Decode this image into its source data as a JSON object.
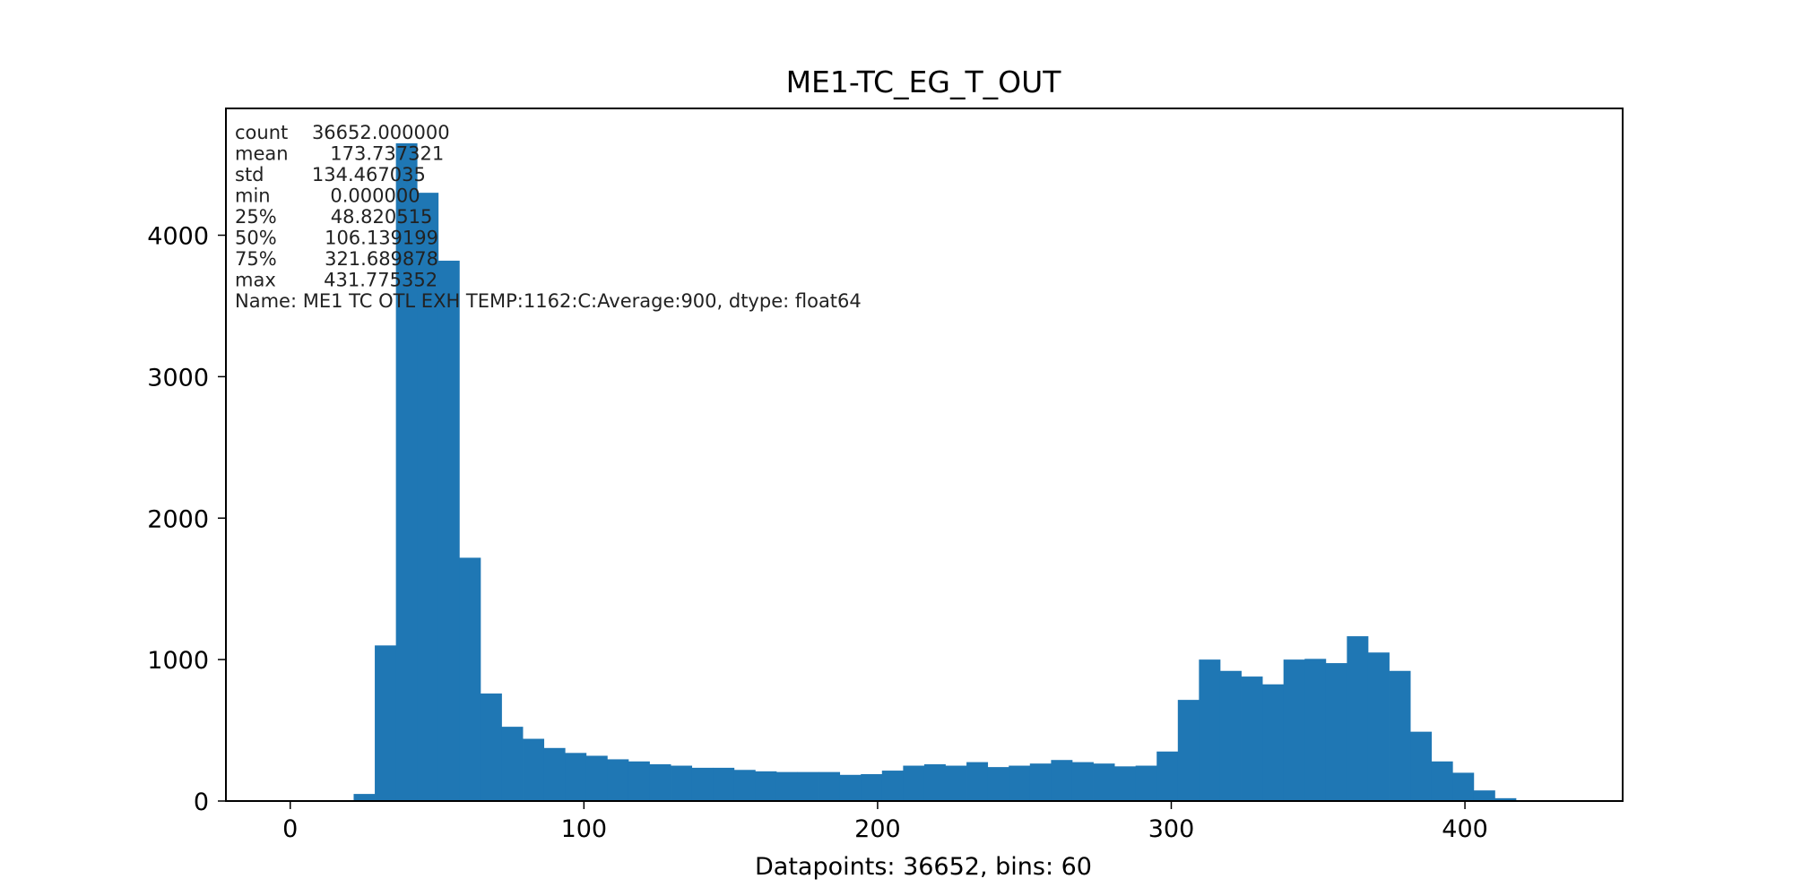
{
  "chart_data": {
    "type": "bar",
    "title": "ME1-TC_EG_T_OUT",
    "xlabel": "Datapoints: 36652, bins: 60",
    "ylabel": "",
    "xlim": [
      -21.6,
      453.4
    ],
    "ylim": [
      0,
      4890
    ],
    "xticks": [
      0,
      100,
      200,
      300,
      400
    ],
    "yticks": [
      0,
      1000,
      2000,
      3000,
      4000
    ],
    "grid": false,
    "bar_color": "#1f77b4",
    "bin_width": 7.196,
    "bin_start": 0,
    "values": [
      0,
      0,
      0,
      50,
      1100,
      4650,
      4300,
      3820,
      1720,
      760,
      525,
      440,
      375,
      340,
      320,
      295,
      280,
      260,
      250,
      235,
      235,
      220,
      210,
      205,
      205,
      205,
      185,
      190,
      215,
      250,
      260,
      250,
      275,
      240,
      250,
      265,
      290,
      275,
      265,
      245,
      250,
      350,
      715,
      1000,
      920,
      880,
      825,
      1000,
      1005,
      975,
      1165,
      1050,
      920,
      490,
      280,
      200,
      75,
      20,
      0,
      0
    ],
    "stats_text": [
      "count    36652.000000",
      "mean       173.737321",
      "std        134.467035",
      "min          0.000000",
      "25%         48.820515",
      "50%        106.139199",
      "75%        321.689878",
      "max        431.775352",
      "Name: ME1 TC OTL EXH TEMP:1162:C:Average:900, dtype: float64"
    ]
  }
}
